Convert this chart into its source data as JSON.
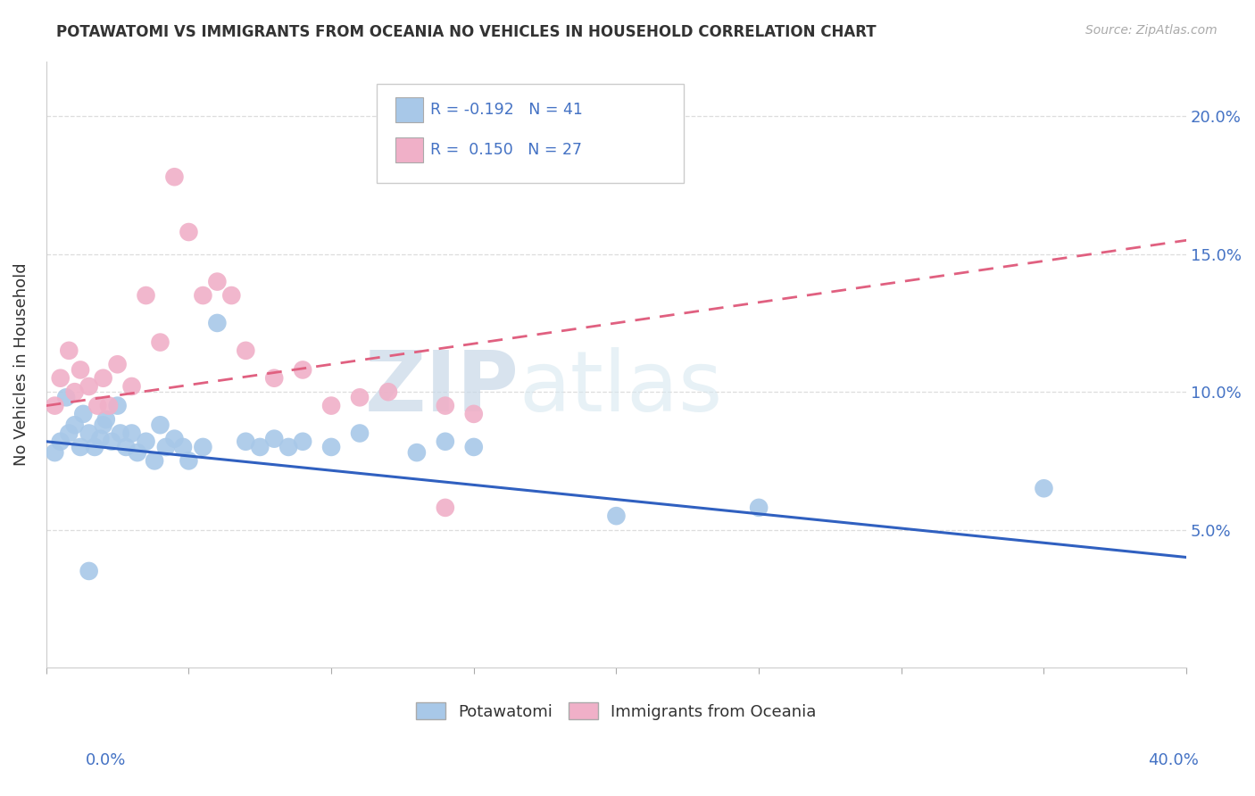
{
  "title": "POTAWATOMI VS IMMIGRANTS FROM OCEANIA NO VEHICLES IN HOUSEHOLD CORRELATION CHART",
  "source": "Source: ZipAtlas.com",
  "ylabel": "No Vehicles in Household",
  "xlim": [
    0.0,
    40.0
  ],
  "ylim": [
    0.0,
    22.0
  ],
  "yticks": [
    5.0,
    10.0,
    15.0,
    20.0
  ],
  "ytick_labels": [
    "5.0%",
    "10.0%",
    "15.0%",
    "20.0%"
  ],
  "blue_r": -0.192,
  "blue_n": 41,
  "pink_r": 0.15,
  "pink_n": 27,
  "blue_color": "#a8c8e8",
  "pink_color": "#f0b0c8",
  "blue_line_color": "#3060c0",
  "pink_line_color": "#e06080",
  "blue_points": [
    [
      0.3,
      7.8
    ],
    [
      0.5,
      8.2
    ],
    [
      0.7,
      9.8
    ],
    [
      0.8,
      8.5
    ],
    [
      1.0,
      8.8
    ],
    [
      1.2,
      8.0
    ],
    [
      1.3,
      9.2
    ],
    [
      1.5,
      8.5
    ],
    [
      1.7,
      8.0
    ],
    [
      1.9,
      8.3
    ],
    [
      2.0,
      8.8
    ],
    [
      2.1,
      9.0
    ],
    [
      2.3,
      8.2
    ],
    [
      2.5,
      9.5
    ],
    [
      2.6,
      8.5
    ],
    [
      2.8,
      8.0
    ],
    [
      3.0,
      8.5
    ],
    [
      3.2,
      7.8
    ],
    [
      3.5,
      8.2
    ],
    [
      3.8,
      7.5
    ],
    [
      4.0,
      8.8
    ],
    [
      4.2,
      8.0
    ],
    [
      4.5,
      8.3
    ],
    [
      4.8,
      8.0
    ],
    [
      5.0,
      7.5
    ],
    [
      5.5,
      8.0
    ],
    [
      6.0,
      12.5
    ],
    [
      7.0,
      8.2
    ],
    [
      7.5,
      8.0
    ],
    [
      8.0,
      8.3
    ],
    [
      8.5,
      8.0
    ],
    [
      9.0,
      8.2
    ],
    [
      10.0,
      8.0
    ],
    [
      11.0,
      8.5
    ],
    [
      13.0,
      7.8
    ],
    [
      14.0,
      8.2
    ],
    [
      15.0,
      8.0
    ],
    [
      20.0,
      5.5
    ],
    [
      25.0,
      5.8
    ],
    [
      35.0,
      6.5
    ],
    [
      1.5,
      3.5
    ]
  ],
  "pink_points": [
    [
      0.3,
      9.5
    ],
    [
      0.5,
      10.5
    ],
    [
      0.8,
      11.5
    ],
    [
      1.0,
      10.0
    ],
    [
      1.2,
      10.8
    ],
    [
      1.5,
      10.2
    ],
    [
      1.8,
      9.5
    ],
    [
      2.0,
      10.5
    ],
    [
      2.2,
      9.5
    ],
    [
      2.5,
      11.0
    ],
    [
      3.0,
      10.2
    ],
    [
      3.5,
      13.5
    ],
    [
      4.0,
      11.8
    ],
    [
      4.5,
      17.8
    ],
    [
      5.0,
      15.8
    ],
    [
      5.5,
      13.5
    ],
    [
      6.0,
      14.0
    ],
    [
      6.5,
      13.5
    ],
    [
      7.0,
      11.5
    ],
    [
      8.0,
      10.5
    ],
    [
      9.0,
      10.8
    ],
    [
      10.0,
      9.5
    ],
    [
      11.0,
      9.8
    ],
    [
      12.0,
      10.0
    ],
    [
      14.0,
      9.5
    ],
    [
      15.0,
      9.2
    ],
    [
      14.0,
      5.8
    ]
  ],
  "watermark_zip": "ZIP",
  "watermark_atlas": "atlas",
  "grid_color": "#dddddd",
  "background_color": "#ffffff"
}
